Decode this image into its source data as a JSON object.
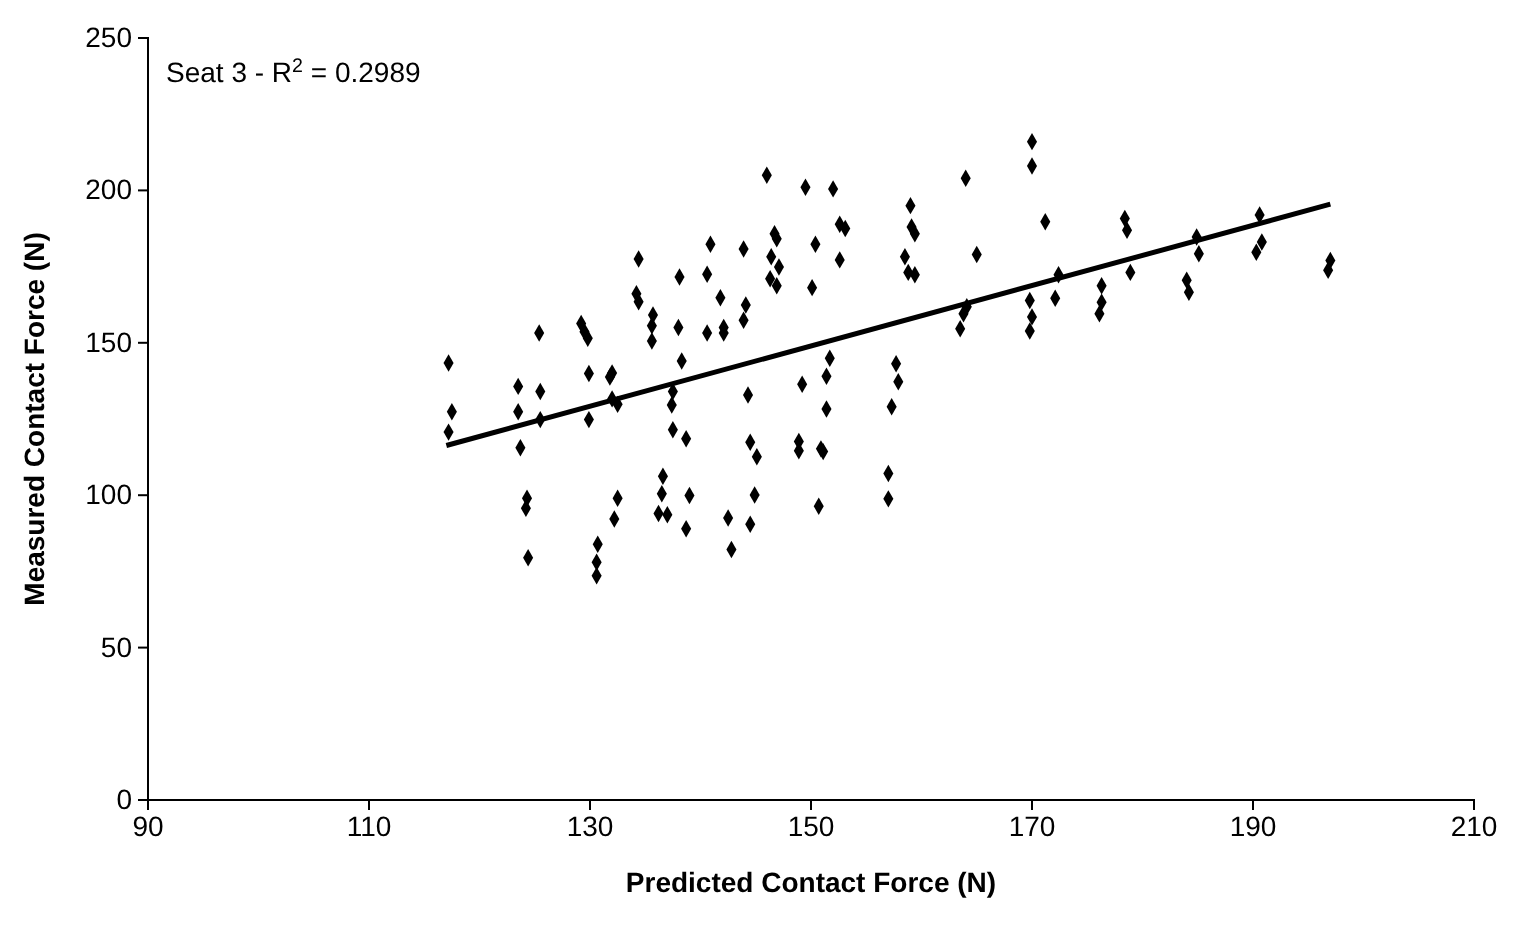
{
  "chart_data": {
    "type": "scatter",
    "xlabel": "Predicted Contact Force (N)",
    "ylabel": "Measured Contact Force (N)",
    "annotations": [
      "Seat 3 - R$^{2}$ = 0.2989"
    ],
    "xlim": [
      90,
      210
    ],
    "xticks": [
      90,
      110,
      130,
      150,
      170,
      190,
      210
    ],
    "ylim": [
      0,
      250
    ],
    "yticks": [
      0,
      50,
      100,
      150,
      200,
      250
    ],
    "grid": false,
    "series": [
      {
        "marker": "diamond",
        "color": "#000000",
        "x": [
          117.2,
          117.5,
          117.2,
          123.5,
          123.5,
          125.5,
          123.7,
          125.4,
          125.5,
          124.3,
          124.2,
          124.4,
          129.2,
          129.5,
          129.8,
          129.9,
          129.9,
          130.7,
          130.6,
          130.6,
          131.8,
          132,
          132,
          132.5,
          132.5,
          132.2,
          134.4,
          134.2,
          134.4,
          135.7,
          135.6,
          135.6,
          137.5,
          137.4,
          137.5,
          138.7,
          136.6,
          136.5,
          136.2,
          137,
          139,
          138.7,
          138,
          138.3,
          138.1,
          140.6,
          140.9,
          143.9,
          141.8,
          140.6,
          142.1,
          142.1,
          144.1,
          143.9,
          144.3,
          144.5,
          145.1,
          144.9,
          144.5,
          142.5,
          142.8,
          146.7,
          146.9,
          146.4,
          147.1,
          146.3,
          146.9,
          150.4,
          150.1,
          152.6,
          153.1,
          152.6,
          159,
          159.1,
          159.4,
          158.5,
          158.8,
          159.4,
          165,
          171.2,
          178.4,
          178.6,
          178.9,
          172.4,
          172.1,
          176.3,
          176.3,
          176.1,
          169.8,
          170,
          169.8,
          164.1,
          163.8,
          163.5,
          151.7,
          151.4,
          151.4,
          149.2,
          157.7,
          157.9,
          157.3,
          148.9,
          148.9,
          150.9,
          151.1,
          150.7,
          157,
          157,
          184.9,
          185.1,
          184,
          184.2,
          190.6,
          190.8,
          190.3,
          197,
          196.8,
          146,
          149.5,
          152,
          164,
          170,
          170
        ],
        "values": [
          143.4,
          127.4,
          120.7,
          135.7,
          127.4,
          134,
          115.6,
          153.2,
          124.8,
          99,
          95.7,
          79.5,
          156.3,
          153.6,
          151.5,
          139.9,
          124.8,
          83.9,
          78,
          73.6,
          138.8,
          140.1,
          131.6,
          129.8,
          99,
          92.2,
          177.5,
          166.1,
          163.5,
          159.1,
          155.6,
          150.6,
          134,
          129.6,
          121.5,
          118.5,
          106.2,
          100.5,
          94,
          93.6,
          99.9,
          89,
          155,
          144,
          171.6,
          172.5,
          182.3,
          180.8,
          164.8,
          153.2,
          155,
          153.2,
          162.4,
          157.4,
          132.9,
          117.4,
          112.6,
          100.1,
          90.5,
          92.5,
          82.2,
          185.8,
          184.1,
          178.2,
          174.9,
          171,
          168.7,
          182.3,
          168.1,
          188.9,
          187.5,
          177.2,
          195,
          188,
          185.8,
          178.2,
          173.1,
          172.3,
          179,
          189.7,
          190.8,
          186.9,
          173.1,
          172.3,
          164.6,
          168.7,
          163.3,
          159.5,
          163.9,
          158.5,
          153.9,
          161.8,
          159.5,
          154.6,
          144.9,
          139,
          128.3,
          136.4,
          143.1,
          137.2,
          129,
          117.6,
          114.6,
          115.2,
          114.3,
          96.4,
          107.1,
          98.8,
          184.7,
          179.2,
          170.5,
          166.6,
          191.9,
          183.1,
          179.7,
          177,
          173.8,
          205,
          201,
          200.5,
          204,
          216,
          208
        ]
      },
      {
        "type": "line",
        "color": "#000000",
        "x": [
          117,
          197
        ],
        "values": [
          116.3,
          195.5
        ]
      }
    ]
  }
}
